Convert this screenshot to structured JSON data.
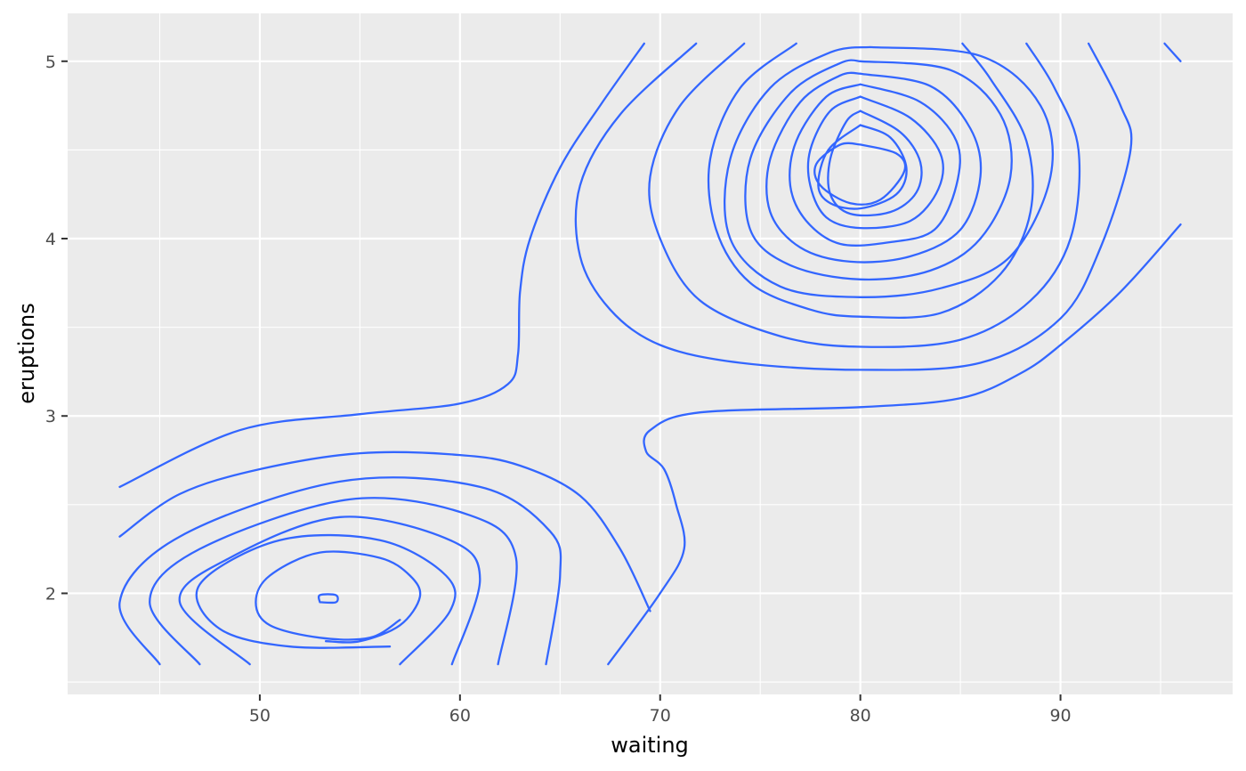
{
  "chart_data": {
    "type": "contour",
    "title": "",
    "xlabel": "waiting",
    "ylabel": "eruptions",
    "xlim": [
      40.4,
      98.6
    ],
    "ylim": [
      1.43,
      5.27
    ],
    "x_ticks": [
      50,
      60,
      70,
      80,
      90
    ],
    "x_tick_labels": [
      "50",
      "60",
      "70",
      "80",
      "90"
    ],
    "y_ticks": [
      2,
      3,
      4,
      5
    ],
    "y_tick_labels": [
      "2",
      "3",
      "4",
      "5"
    ],
    "x_minor_ticks": [
      45,
      55,
      65,
      75,
      85,
      95
    ],
    "y_minor_ticks": [
      1.5,
      2.5,
      3.5,
      4.5
    ],
    "grid": true,
    "legend": "none",
    "colors": {
      "panel": "#ebebeb",
      "grid": "#ffffff",
      "line": "#3366ff"
    },
    "contour_lines": [
      {
        "x": [
          43.0,
          49.0,
          55.0,
          60.0,
          62.4,
          62.9,
          63.0,
          63.5,
          65.0,
          67.0,
          69.2
        ],
        "y": [
          2.6,
          2.92,
          3.01,
          3.07,
          3.18,
          3.35,
          3.7,
          4.0,
          4.4,
          4.75,
          5.1
        ]
      },
      {
        "x": [
          67.4,
          70.0,
          71.2,
          70.8,
          70.2,
          69.3,
          69.5,
          72.0,
          80.0,
          85.0,
          88.0,
          90.0,
          93.0,
          96.0
        ],
        "y": [
          1.6,
          2.0,
          2.25,
          2.5,
          2.7,
          2.8,
          2.92,
          3.02,
          3.05,
          3.1,
          3.24,
          3.4,
          3.7,
          4.08
        ]
      },
      {
        "x": [
          43.0,
          46.0,
          50.0,
          55.0,
          60.0,
          63.0,
          66.0,
          68.0,
          69.5
        ],
        "y": [
          2.32,
          2.56,
          2.7,
          2.79,
          2.78,
          2.72,
          2.55,
          2.25,
          1.9
        ]
      },
      {
        "x": [
          45.0,
          43.0,
          46.0,
          54.0,
          61.0,
          64.5,
          65.0,
          64.3
        ],
        "y": [
          1.6,
          1.95,
          2.32,
          2.63,
          2.6,
          2.35,
          2.1,
          1.6
        ]
      },
      {
        "x": [
          47.0,
          44.5,
          47.0,
          54.5,
          60.5,
          62.8,
          61.9
        ],
        "y": [
          1.6,
          1.95,
          2.25,
          2.53,
          2.44,
          2.2,
          1.6
        ]
      },
      {
        "x": [
          49.5,
          46.0,
          48.5,
          54.0,
          59.5,
          61.0,
          59.6
        ],
        "y": [
          1.6,
          1.95,
          2.2,
          2.43,
          2.3,
          2.08,
          1.6
        ]
      },
      {
        "x": [
          57.0,
          59.5,
          59.3,
          56.0,
          51.0,
          47.0,
          48.0,
          51.5,
          56.5
        ],
        "y": [
          1.6,
          1.9,
          2.1,
          2.3,
          2.3,
          2.05,
          1.8,
          1.7,
          1.7
        ]
      },
      {
        "x": [
          53.3,
          55.0,
          57.0,
          58.0,
          57.5,
          56.0,
          53.0,
          50.5,
          49.8,
          50.5,
          53.0,
          55.5,
          57.0
        ],
        "y": [
          1.73,
          1.73,
          1.82,
          1.98,
          2.1,
          2.2,
          2.23,
          2.1,
          1.95,
          1.82,
          1.75,
          1.75,
          1.85
        ]
      },
      {
        "x": [
          53.0,
          53.8,
          53.8,
          53.0,
          53.0
        ],
        "y": [
          1.95,
          1.95,
          1.99,
          1.99,
          1.95
        ]
      },
      {
        "x": [
          71.8,
          68.0,
          66.0,
          66.0,
          67.5,
          70.0,
          74.0,
          80.0,
          86.0,
          90.0,
          92.0,
          93.5,
          93.0,
          91.4
        ],
        "y": [
          5.1,
          4.7,
          4.3,
          3.9,
          3.6,
          3.4,
          3.3,
          3.26,
          3.3,
          3.55,
          3.95,
          4.5,
          4.75,
          5.1
        ]
      },
      {
        "x": [
          74.2,
          71.0,
          69.5,
          70.0,
          72.0,
          76.0,
          80.0,
          85.0,
          88.5,
          90.5,
          90.9,
          89.7,
          88.3
        ],
        "y": [
          5.1,
          4.75,
          4.35,
          4.0,
          3.65,
          3.45,
          3.39,
          3.43,
          3.65,
          4.0,
          4.5,
          4.85,
          5.1
        ]
      },
      {
        "x": [
          76.8,
          74.0,
          72.5,
          72.8,
          74.5,
          77.5,
          80.0,
          84.0,
          87.0,
          88.5,
          88.3,
          86.5,
          85.1
        ],
        "y": [
          5.1,
          4.85,
          4.45,
          4.05,
          3.75,
          3.6,
          3.56,
          3.58,
          3.8,
          4.15,
          4.55,
          4.9,
          5.1
        ]
      },
      {
        "x": [
          80.5,
          86.0,
          89.0,
          89.5,
          87.5,
          84.0,
          80.0,
          76.0,
          73.5,
          73.5,
          75.5,
          78.5,
          80.5
        ],
        "y": [
          5.08,
          5.03,
          4.75,
          4.35,
          3.9,
          3.72,
          3.67,
          3.73,
          4.0,
          4.45,
          4.85,
          5.05,
          5.08
        ]
      },
      {
        "x": [
          80.0,
          84.5,
          87.0,
          87.5,
          86.0,
          83.5,
          80.0,
          76.5,
          74.5,
          74.5,
          76.5,
          79.0,
          80.0
        ],
        "y": [
          5.0,
          4.95,
          4.7,
          4.35,
          4.0,
          3.82,
          3.77,
          3.85,
          4.05,
          4.45,
          4.82,
          4.99,
          5.0
        ]
      },
      {
        "x": [
          80.0,
          83.5,
          85.5,
          86.0,
          85.0,
          82.5,
          79.5,
          77.0,
          75.5,
          75.5,
          77.0,
          79.0,
          80.0
        ],
        "y": [
          4.93,
          4.86,
          4.62,
          4.35,
          4.05,
          3.9,
          3.87,
          3.95,
          4.15,
          4.45,
          4.77,
          4.92,
          4.93
        ]
      },
      {
        "x": [
          80.0,
          83.0,
          84.8,
          84.8,
          83.7,
          81.5,
          79.0,
          77.3,
          76.5,
          76.8,
          78.3,
          80.0
        ],
        "y": [
          4.87,
          4.77,
          4.55,
          4.3,
          4.05,
          3.98,
          3.97,
          4.1,
          4.3,
          4.55,
          4.8,
          4.87
        ]
      },
      {
        "x": [
          80.0,
          82.5,
          84.0,
          83.9,
          82.5,
          80.0,
          78.3,
          77.5,
          77.5,
          78.5,
          80.0
        ],
        "y": [
          4.8,
          4.68,
          4.48,
          4.28,
          4.1,
          4.06,
          4.12,
          4.3,
          4.5,
          4.72,
          4.8
        ]
      },
      {
        "x": [
          80.0,
          82.0,
          83.0,
          82.8,
          81.5,
          79.5,
          78.5,
          78.5,
          79.3,
          80.0
        ],
        "y": [
          4.72,
          4.6,
          4.43,
          4.26,
          4.15,
          4.14,
          4.25,
          4.45,
          4.66,
          4.72
        ]
      },
      {
        "x": [
          80.0,
          81.5,
          82.3,
          81.8,
          80.0,
          78.5,
          77.9,
          78.4,
          80.0
        ],
        "y": [
          4.64,
          4.57,
          4.4,
          4.25,
          4.17,
          4.2,
          4.3,
          4.5,
          4.64
        ]
      },
      {
        "x": [
          80.0,
          81.8,
          82.2,
          81.0,
          79.5,
          78.0,
          77.8,
          79.0,
          80.0
        ],
        "y": [
          4.53,
          4.48,
          4.38,
          4.22,
          4.2,
          4.3,
          4.42,
          4.53,
          4.53
        ]
      },
      {
        "x": [
          95.2,
          96.0
        ],
        "y": [
          5.1,
          5.0
        ]
      }
    ]
  }
}
